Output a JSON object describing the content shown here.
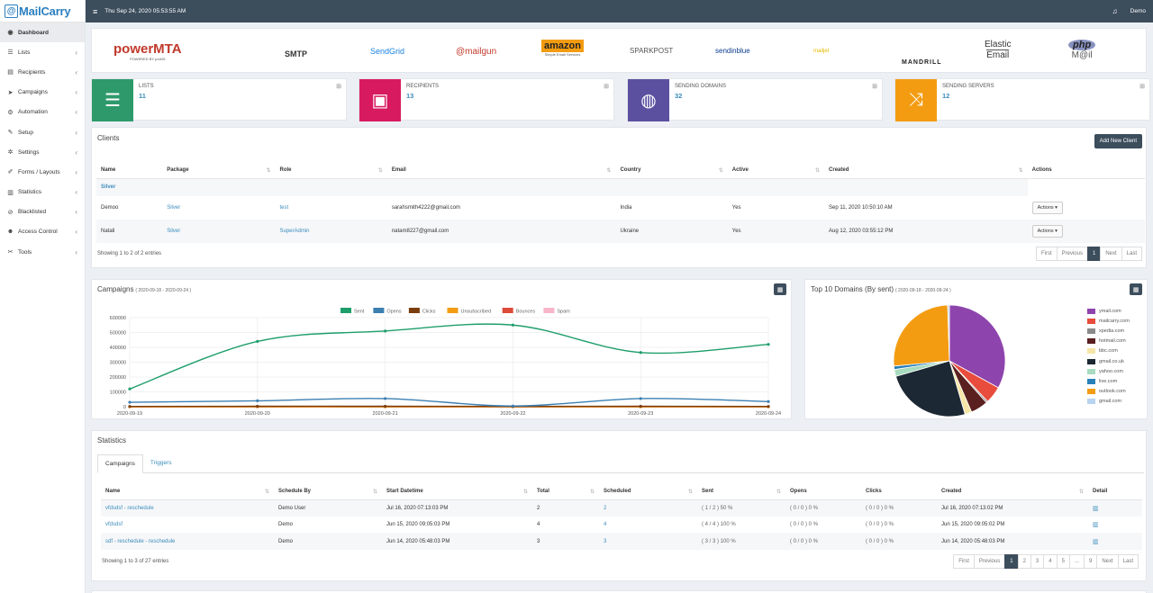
{
  "brand": {
    "name": "MailCarry"
  },
  "topbar": {
    "datetime": "Thu Sep 24, 2020 05:53:55 AM",
    "user": "Demo"
  },
  "sidebar": {
    "items": [
      {
        "label": "Dashboard",
        "icon": "dashboard-icon",
        "glyph": "◉",
        "active": true,
        "chevron": false
      },
      {
        "label": "Lists",
        "icon": "list-icon",
        "glyph": "☰",
        "active": false,
        "chevron": true
      },
      {
        "label": "Recipients",
        "icon": "address-card-icon",
        "glyph": "▤",
        "active": false,
        "chevron": true
      },
      {
        "label": "Campaigns",
        "icon": "paper-plane-icon",
        "glyph": "➤",
        "active": false,
        "chevron": true
      },
      {
        "label": "Automation",
        "icon": "gears-icon",
        "glyph": "⚙",
        "active": false,
        "chevron": true
      },
      {
        "label": "Setup",
        "icon": "wrench-icon",
        "glyph": "✎",
        "active": false,
        "chevron": true
      },
      {
        "label": "Settings",
        "icon": "gear-icon",
        "glyph": "✲",
        "active": false,
        "chevron": true
      },
      {
        "label": "Forms / Layouts",
        "icon": "pencil-icon",
        "glyph": "✐",
        "active": false,
        "chevron": true
      },
      {
        "label": "Statistics",
        "icon": "bar-chart-icon",
        "glyph": "▥",
        "active": false,
        "chevron": true
      },
      {
        "label": "Blacklisted",
        "icon": "ban-icon",
        "glyph": "⊘",
        "active": false,
        "chevron": true
      },
      {
        "label": "Access Control",
        "icon": "user-lock-icon",
        "glyph": "☻",
        "active": false,
        "chevron": true
      },
      {
        "label": "Tools",
        "icon": "tools-icon",
        "glyph": "✂",
        "active": false,
        "chevron": true
      }
    ]
  },
  "logos": [
    {
      "name": "powermta",
      "main": "powerMTA",
      "sub": "POWERED BY port25"
    },
    {
      "name": "smtp",
      "main": "SMTP",
      "sub": ""
    },
    {
      "name": "sendgrid",
      "main": "SendGrid",
      "sub": ""
    },
    {
      "name": "mailgun",
      "main": "@mailgun",
      "sub": ""
    },
    {
      "name": "amazon",
      "main": "amazon",
      "sub": "Simple Email Services"
    },
    {
      "name": "sparkpost",
      "main": "SPARKPOST",
      "sub": ""
    },
    {
      "name": "sendinblue",
      "main": "sendinblue",
      "sub": ""
    },
    {
      "name": "mailjet",
      "main": "mailjet",
      "sub": ""
    },
    {
      "name": "mandrill",
      "main": "MANDRILL",
      "sub": ""
    },
    {
      "name": "elastic-email",
      "main": "Elastic",
      "sub": "Email"
    },
    {
      "name": "php-mail",
      "main": "php",
      "sub": "M@il"
    }
  ],
  "stats": [
    {
      "title": "LISTS",
      "value": "11",
      "color": "#2e9a6b",
      "icon": "list-icon",
      "glyph": "☰"
    },
    {
      "title": "RECIPIENTS",
      "value": "13",
      "color": "#d81b60",
      "icon": "address-card-icon",
      "glyph": "▣"
    },
    {
      "title": "SENDING DOMAINS",
      "value": "32",
      "color": "#5b50a0",
      "icon": "globe-icon",
      "glyph": "◍"
    },
    {
      "title": "SENDING SERVERS",
      "value": "12",
      "color": "#f39c12",
      "icon": "shuffle-icon",
      "glyph": "⤨"
    }
  ],
  "clients": {
    "title": "Clients",
    "add_button": "Add New Client",
    "columns": [
      "Name",
      "Package",
      "Role",
      "Email",
      "Country",
      "Active",
      "Created",
      "Actions"
    ],
    "group_label": "Silver",
    "rows": [
      {
        "name": "Demoo",
        "package": "Silver",
        "role": "test",
        "email": "sarahsmith4222@gmail.com",
        "country": "India",
        "active": "Yes",
        "created": "Sep 11, 2020 10:50:10 AM",
        "action": "Actions ▾"
      },
      {
        "name": "Natali",
        "package": "Silver",
        "role": "SuperAdmin",
        "email": "natam8227@gmail.com",
        "country": "Ukraine",
        "active": "Yes",
        "created": "Aug 12, 2020 03:55:12 PM",
        "action": "Actions ▾"
      }
    ],
    "info": "Showing 1 to 2 of 2 entries",
    "pager": [
      "First",
      "Previous",
      "1",
      "Next",
      "Last"
    ],
    "current_page": "1"
  },
  "campaigns_chart": {
    "title": "Campaigns",
    "range": "( 2020-09-18 - 2020-09-24 )"
  },
  "chart_data": [
    {
      "type": "line",
      "title": "Campaigns",
      "x": [
        "2020-09-19",
        "2020-09-20",
        "2020-09-21",
        "2020-09-22",
        "2020-09-23",
        "2020-09-24"
      ],
      "ylim": [
        0,
        600000
      ],
      "yticks": [
        "600000",
        "500000",
        "400000",
        "300000",
        "200000",
        "100000",
        "0"
      ],
      "legend_position": "top",
      "grid": true,
      "series": [
        {
          "name": "Sent",
          "color": "#1e9e6b",
          "values": [
            120000,
            440000,
            510000,
            550000,
            365000,
            420000
          ]
        },
        {
          "name": "Opens",
          "color": "#3c7fb1",
          "values": [
            30000,
            40000,
            55000,
            5000,
            55000,
            35000
          ]
        },
        {
          "name": "Clicks",
          "color": "#7a3e0e",
          "values": [
            2000,
            3000,
            3000,
            2000,
            3000,
            2000
          ]
        },
        {
          "name": "Unsubscribed",
          "color": "#f39c12",
          "values": [
            0,
            0,
            0,
            0,
            0,
            0
          ]
        },
        {
          "name": "Bounces",
          "color": "#dd4b39",
          "values": [
            0,
            0,
            0,
            0,
            0,
            0
          ]
        },
        {
          "name": "Spam",
          "color": "#f7b6c8",
          "values": [
            0,
            0,
            0,
            0,
            0,
            0
          ]
        }
      ]
    },
    {
      "type": "pie",
      "title": "Top 10 Domains (By sent)",
      "range": "( 2020-09-18 - 2020-09-24 )",
      "legend_position": "right",
      "labels": [
        "ymail.com",
        "mailcarry.com",
        "xpedia.com",
        "hotmail.com",
        "bbc.com",
        "gmail.co.uk",
        "yahoo.com",
        "live.com",
        "outlook.com",
        "gmail.com"
      ],
      "colors": [
        "#8e44ad",
        "#e74c3c",
        "#8a8a8a",
        "#5a1f1f",
        "#f5e6a8",
        "#1c2833",
        "#a8dbc0",
        "#2980b9",
        "#f39c12",
        "#b8d4f0"
      ],
      "values": [
        33,
        5,
        0.5,
        5,
        2,
        25,
        2,
        1,
        26,
        0.5
      ]
    }
  ],
  "statistics": {
    "title": "Statistics",
    "tabs": [
      "Campaigns",
      "Triggers"
    ],
    "columns": [
      "Name",
      "Schedule By",
      "Start Datetime",
      "Total",
      "Scheduled",
      "Sent",
      "Opens",
      "Clicks",
      "Created",
      "Detail"
    ],
    "rows": [
      {
        "name": "vfdsdsf - reschedule",
        "by": "Demo User",
        "start": "Jul 16, 2020 07:13:03 PM",
        "total": "2",
        "scheduled": "2",
        "sent": "( 1 / 2 ) 50 %",
        "opens": "( 0 / 0 ) 0 %",
        "clicks": "( 0 / 0 ) 0 %",
        "created": "Jul 16, 2020 07:13:02 PM"
      },
      {
        "name": "vfdsdsf",
        "by": "Demo",
        "start": "Jun 15, 2020 09:05:03 PM",
        "total": "4",
        "scheduled": "4",
        "sent": "( 4 / 4 ) 100 %",
        "opens": "( 0 / 0 ) 0 %",
        "clicks": "( 0 / 0 ) 0 %",
        "created": "Jun 15, 2020 09:05:02 PM"
      },
      {
        "name": "sdf - reschedule - reschedule",
        "by": "Demo",
        "start": "Jun 14, 2020 05:48:03 PM",
        "total": "3",
        "scheduled": "3",
        "sent": "( 3 / 3 ) 100 %",
        "opens": "( 0 / 0 ) 0 %",
        "clicks": "( 0 / 0 ) 0 %",
        "created": "Jun 14, 2020 05:48:03 PM"
      }
    ],
    "info": "Showing 1 to 3 of 27 entries",
    "pager": [
      "First",
      "Previous",
      "1",
      "2",
      "3",
      "4",
      "5",
      "...",
      "9",
      "Next",
      "Last"
    ],
    "current_page": "1"
  }
}
